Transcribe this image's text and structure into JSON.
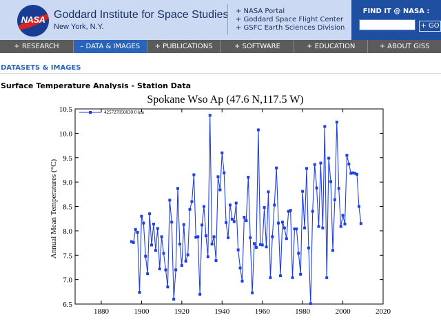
{
  "header": {
    "logo_text": "NASA",
    "org_title": "Goddard Institute for Space Studies",
    "org_location": "New York, N.Y.",
    "links": [
      "+ NASA Portal",
      "+ Goddard Space Flight Center",
      "+ GSFC Earth Sciences Division"
    ],
    "find_label": "FIND IT @ NASA :",
    "search_value": "",
    "go_label": "+ GO"
  },
  "nav": {
    "items": [
      "+ RESEARCH",
      "– DATA & IMAGES",
      "+ PUBLICATIONS",
      "+ SOFTWARE",
      "+ EDUCATION",
      "+ ABOUT GISS"
    ],
    "active_index": 1
  },
  "breadcrumb": "DATASETS & IMAGES",
  "page_heading": "Surface Temperature Analysis - Station Data",
  "colors": {
    "header_bg": "#ccd9f2",
    "nav_bg": "#5b5b5b",
    "nav_active": "#2a64b8",
    "series": "#1f3fe0"
  },
  "chart_data": {
    "type": "line",
    "title": "Spokane Wso Ap (47.6 N,117.5 W)",
    "xlabel": "",
    "ylabel": "Annual Mean Temperatures (°C)",
    "xlim": [
      1867,
      2020
    ],
    "ylim": [
      6.5,
      10.5
    ],
    "x_ticks": [
      1880,
      1900,
      1920,
      1940,
      1960,
      1980,
      2000,
      2020
    ],
    "y_ticks": [
      "6.5",
      "7.0",
      "7.5",
      "8.0",
      "8.5",
      "9.0",
      "9.5",
      "10.0",
      "10.5"
    ],
    "legend_position": "top-left",
    "grid": false,
    "series": [
      {
        "name": "425727850030 0 km",
        "x": [
          1895,
          1896,
          1897,
          1898,
          1899,
          1900,
          1901,
          1902,
          1903,
          1904,
          1905,
          1906,
          1907,
          1908,
          1909,
          1910,
          1911,
          1912,
          1913,
          1914,
          1915,
          1916,
          1917,
          1918,
          1919,
          1920,
          1921,
          1922,
          1923,
          1924,
          1925,
          1926,
          1927,
          1928,
          1929,
          1930,
          1931,
          1932,
          1933,
          1934,
          1935,
          1936,
          1937,
          1938,
          1939,
          1940,
          1941,
          1942,
          1943,
          1944,
          1945,
          1946,
          1947,
          1948,
          1949,
          1950,
          1951,
          1952,
          1953,
          1954,
          1955,
          1956,
          1957,
          1958,
          1959,
          1960,
          1961,
          1962,
          1963,
          1964,
          1965,
          1966,
          1967,
          1968,
          1969,
          1970,
          1971,
          1972,
          1973,
          1974,
          1975,
          1976,
          1977,
          1978,
          1979,
          1980,
          1981,
          1982,
          1983,
          1984,
          1985,
          1986,
          1987,
          1988,
          1989,
          1990,
          1991,
          1992,
          1993,
          1994,
          1995,
          1996,
          1997,
          1998,
          1999,
          2000,
          2001,
          2002,
          2003,
          2004,
          2005,
          2006,
          2007,
          2008,
          2009
        ],
        "values": [
          7.78,
          7.76,
          8.03,
          7.97,
          6.74,
          8.3,
          8.16,
          7.48,
          7.12,
          8.35,
          7.71,
          8.14,
          7.6,
          8.05,
          7.22,
          7.88,
          7.54,
          7.2,
          6.85,
          8.63,
          8.18,
          6.6,
          7.2,
          8.87,
          7.73,
          7.29,
          8.13,
          7.38,
          7.51,
          8.44,
          8.6,
          9.15,
          7.87,
          7.88,
          6.7,
          8.12,
          8.5,
          7.9,
          7.47,
          10.37,
          7.73,
          7.88,
          7.39,
          9.11,
          8.84,
          9.6,
          9.19,
          8.17,
          7.86,
          8.53,
          8.24,
          8.19,
          8.57,
          7.61,
          7.24,
          6.97,
          8.28,
          8.21,
          9.1,
          7.86,
          6.73,
          7.74,
          7.66,
          10.07,
          7.72,
          7.71,
          8.48,
          7.67,
          8.8,
          7.04,
          7.88,
          8.53,
          9.29,
          8.16,
          7.08,
          8.18,
          8.06,
          7.84,
          8.4,
          8.42,
          7.04,
          8.04,
          8.04,
          7.54,
          7.11,
          8.81,
          8.06,
          9.28,
          7.65,
          6.51,
          8.4,
          9.36,
          8.88,
          8.09,
          9.39,
          8.06,
          10.14,
          7.04,
          9.49,
          9.01,
          7.6,
          8.64,
          10.23,
          8.87,
          8.09,
          8.32,
          8.14,
          9.55,
          9.37,
          9.18,
          9.19,
          9.18,
          9.16,
          8.5,
          8.15
        ]
      }
    ]
  }
}
